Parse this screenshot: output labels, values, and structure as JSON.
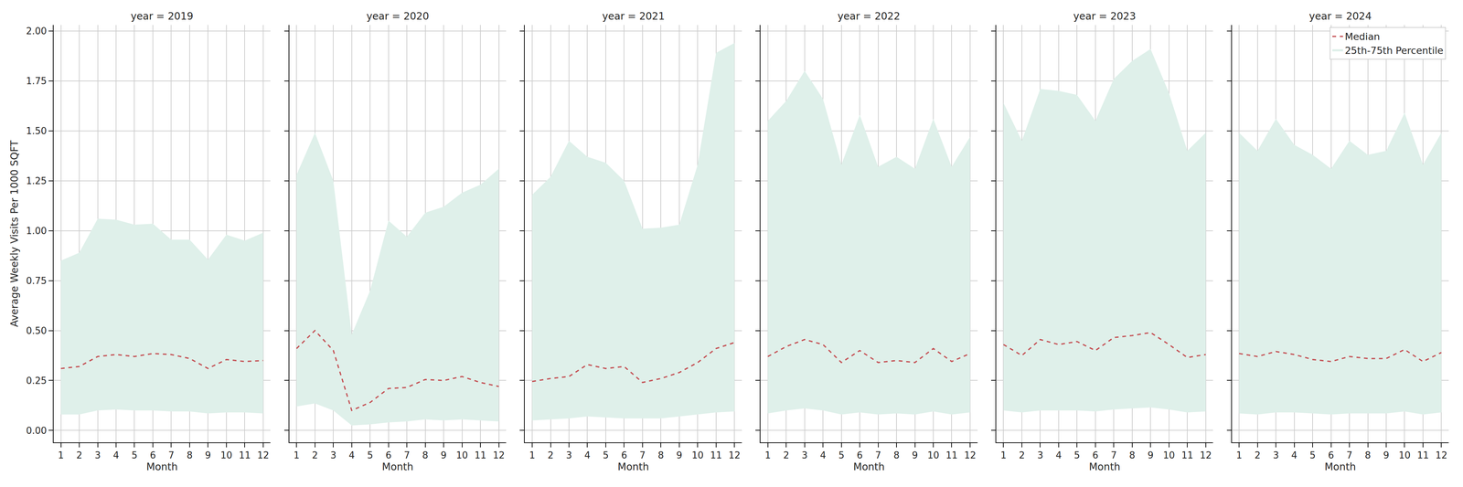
{
  "chart_data": [
    {
      "type": "line",
      "title": "year = 2019",
      "x_label": "Month",
      "y_label": "Average Weekly Visits Per 1000 SQFT",
      "x": [
        1,
        2,
        3,
        4,
        5,
        6,
        7,
        8,
        9,
        10,
        11,
        12
      ],
      "series": [
        {
          "name": "25th-75th Percentile",
          "type": "area",
          "color": "#dff0ea",
          "lower": [
            0.08,
            0.08,
            0.1,
            0.105,
            0.1,
            0.1,
            0.095,
            0.095,
            0.085,
            0.09,
            0.09,
            0.085
          ],
          "upper": [
            0.85,
            0.89,
            1.06,
            1.055,
            1.03,
            1.035,
            0.955,
            0.955,
            0.855,
            0.98,
            0.95,
            0.99
          ]
        },
        {
          "name": "Median",
          "type": "line",
          "color": "#c44e52",
          "line_style": "dashed",
          "values": [
            0.31,
            0.32,
            0.37,
            0.38,
            0.37,
            0.385,
            0.38,
            0.36,
            0.31,
            0.355,
            0.345,
            0.35
          ]
        }
      ],
      "xlim": [
        0.6,
        12.4
      ],
      "xticks": [
        1,
        2,
        3,
        4,
        5,
        6,
        7,
        8,
        9,
        10,
        11,
        12
      ],
      "ylim": [
        -0.06,
        2.03
      ],
      "yticks": [
        {
          "value": 0,
          "label": "0.00"
        },
        {
          "value": 0.25,
          "label": "0.25"
        },
        {
          "value": 0.5,
          "label": "0.50"
        },
        {
          "value": 0.75,
          "label": "0.75"
        },
        {
          "value": 1,
          "label": "1.00"
        },
        {
          "value": 1.25,
          "label": "1.25"
        },
        {
          "value": 1.5,
          "label": "1.50"
        },
        {
          "value": 1.75,
          "label": "1.75"
        },
        {
          "value": 2,
          "label": "2.00"
        }
      ],
      "grid": true
    },
    {
      "type": "line",
      "title": "year = 2020",
      "x_label": "Month",
      "x": [
        1,
        2,
        3,
        4,
        5,
        6,
        7,
        8,
        9,
        10,
        11,
        12
      ],
      "series": [
        {
          "name": "25th-75th Percentile",
          "type": "area",
          "color": "#dff0ea",
          "lower": [
            0.12,
            0.135,
            0.1,
            0.025,
            0.03,
            0.04,
            0.045,
            0.055,
            0.05,
            0.055,
            0.05,
            0.045
          ],
          "upper": [
            1.28,
            1.49,
            1.25,
            0.48,
            0.7,
            1.05,
            0.97,
            1.09,
            1.12,
            1.19,
            1.23,
            1.31
          ]
        },
        {
          "name": "Median",
          "type": "line",
          "color": "#c44e52",
          "line_style": "dashed",
          "values": [
            0.41,
            0.5,
            0.4,
            0.1,
            0.14,
            0.21,
            0.215,
            0.255,
            0.25,
            0.27,
            0.24,
            0.22
          ]
        }
      ],
      "xlim": [
        0.6,
        12.4
      ],
      "xticks": [
        1,
        2,
        3,
        4,
        5,
        6,
        7,
        8,
        9,
        10,
        11,
        12
      ],
      "ylim": [
        -0.06,
        2.03
      ],
      "yticks": [
        {
          "value": 0,
          "label": "0.00"
        },
        {
          "value": 0.25,
          "label": "0.25"
        },
        {
          "value": 0.5,
          "label": "0.50"
        },
        {
          "value": 0.75,
          "label": "0.75"
        },
        {
          "value": 1,
          "label": "1.00"
        },
        {
          "value": 1.25,
          "label": "1.25"
        },
        {
          "value": 1.5,
          "label": "1.50"
        },
        {
          "value": 1.75,
          "label": "1.75"
        },
        {
          "value": 2,
          "label": "2.00"
        }
      ],
      "grid": true,
      "tick_labels": "x"
    },
    {
      "type": "line",
      "title": "year = 2021",
      "x_label": "Month",
      "x": [
        1,
        2,
        3,
        4,
        5,
        6,
        7,
        8,
        9,
        10,
        11,
        12
      ],
      "series": [
        {
          "name": "25th-75th Percentile",
          "type": "area",
          "color": "#dff0ea",
          "lower": [
            0.05,
            0.055,
            0.06,
            0.07,
            0.065,
            0.06,
            0.06,
            0.06,
            0.07,
            0.08,
            0.09,
            0.095
          ],
          "upper": [
            1.18,
            1.27,
            1.45,
            1.37,
            1.34,
            1.25,
            1.01,
            1.015,
            1.03,
            1.33,
            1.89,
            1.94
          ]
        },
        {
          "name": "Median",
          "type": "line",
          "color": "#c44e52",
          "line_style": "dashed",
          "values": [
            0.245,
            0.26,
            0.27,
            0.33,
            0.31,
            0.32,
            0.24,
            0.26,
            0.29,
            0.34,
            0.41,
            0.44
          ]
        }
      ],
      "xlim": [
        0.6,
        12.4
      ],
      "xticks": [
        1,
        2,
        3,
        4,
        5,
        6,
        7,
        8,
        9,
        10,
        11,
        12
      ],
      "ylim": [
        -0.06,
        2.03
      ],
      "yticks": [
        {
          "value": 0,
          "label": "0.00"
        },
        {
          "value": 0.25,
          "label": "0.25"
        },
        {
          "value": 0.5,
          "label": "0.50"
        },
        {
          "value": 0.75,
          "label": "0.75"
        },
        {
          "value": 1,
          "label": "1.00"
        },
        {
          "value": 1.25,
          "label": "1.25"
        },
        {
          "value": 1.5,
          "label": "1.50"
        },
        {
          "value": 1.75,
          "label": "1.75"
        },
        {
          "value": 2,
          "label": "2.00"
        }
      ],
      "grid": true,
      "tick_labels": "x"
    },
    {
      "type": "line",
      "title": "year = 2022",
      "x_label": "Month",
      "x": [
        1,
        2,
        3,
        4,
        5,
        6,
        7,
        8,
        9,
        10,
        11,
        12
      ],
      "series": [
        {
          "name": "25th-75th Percentile",
          "type": "area",
          "color": "#dff0ea",
          "lower": [
            0.085,
            0.1,
            0.11,
            0.1,
            0.08,
            0.09,
            0.08,
            0.085,
            0.08,
            0.095,
            0.08,
            0.09
          ],
          "upper": [
            1.55,
            1.65,
            1.8,
            1.66,
            1.33,
            1.58,
            1.32,
            1.37,
            1.31,
            1.56,
            1.32,
            1.47
          ]
        },
        {
          "name": "Median",
          "type": "line",
          "color": "#c44e52",
          "line_style": "dashed",
          "values": [
            0.37,
            0.42,
            0.455,
            0.43,
            0.34,
            0.4,
            0.34,
            0.35,
            0.34,
            0.41,
            0.345,
            0.385
          ]
        }
      ],
      "xlim": [
        0.6,
        12.4
      ],
      "xticks": [
        1,
        2,
        3,
        4,
        5,
        6,
        7,
        8,
        9,
        10,
        11,
        12
      ],
      "ylim": [
        -0.06,
        2.03
      ],
      "yticks": [
        {
          "value": 0,
          "label": "0.00"
        },
        {
          "value": 0.25,
          "label": "0.25"
        },
        {
          "value": 0.5,
          "label": "0.50"
        },
        {
          "value": 0.75,
          "label": "0.75"
        },
        {
          "value": 1,
          "label": "1.00"
        },
        {
          "value": 1.25,
          "label": "1.25"
        },
        {
          "value": 1.5,
          "label": "1.50"
        },
        {
          "value": 1.75,
          "label": "1.75"
        },
        {
          "value": 2,
          "label": "2.00"
        }
      ],
      "grid": true,
      "tick_labels": "x"
    },
    {
      "type": "line",
      "title": "year = 2023",
      "x_label": "Month",
      "x": [
        1,
        2,
        3,
        4,
        5,
        6,
        7,
        8,
        9,
        10,
        11,
        12
      ],
      "series": [
        {
          "name": "25th-75th Percentile",
          "type": "area",
          "color": "#dff0ea",
          "lower": [
            0.1,
            0.09,
            0.1,
            0.1,
            0.1,
            0.095,
            0.105,
            0.11,
            0.115,
            0.105,
            0.09,
            0.095
          ],
          "upper": [
            1.64,
            1.45,
            1.71,
            1.7,
            1.68,
            1.55,
            1.76,
            1.85,
            1.91,
            1.69,
            1.4,
            1.49
          ]
        },
        {
          "name": "Median",
          "type": "line",
          "color": "#c44e52",
          "line_style": "dashed",
          "values": [
            0.43,
            0.375,
            0.455,
            0.43,
            0.445,
            0.4,
            0.465,
            0.475,
            0.49,
            0.43,
            0.365,
            0.38
          ]
        }
      ],
      "xlim": [
        0.6,
        12.4
      ],
      "xticks": [
        1,
        2,
        3,
        4,
        5,
        6,
        7,
        8,
        9,
        10,
        11,
        12
      ],
      "ylim": [
        -0.06,
        2.03
      ],
      "yticks": [
        {
          "value": 0,
          "label": "0.00"
        },
        {
          "value": 0.25,
          "label": "0.25"
        },
        {
          "value": 0.5,
          "label": "0.50"
        },
        {
          "value": 0.75,
          "label": "0.75"
        },
        {
          "value": 1,
          "label": "1.00"
        },
        {
          "value": 1.25,
          "label": "1.25"
        },
        {
          "value": 1.5,
          "label": "1.50"
        },
        {
          "value": 1.75,
          "label": "1.75"
        },
        {
          "value": 2,
          "label": "2.00"
        }
      ],
      "grid": true,
      "tick_labels": "x"
    },
    {
      "type": "line",
      "title": "year = 2024",
      "x_label": "Month",
      "x": [
        1,
        2,
        3,
        4,
        5,
        6,
        7,
        8,
        9,
        10,
        11,
        12
      ],
      "series": [
        {
          "name": "25th-75th Percentile",
          "type": "area",
          "color": "#dff0ea",
          "lower": [
            0.085,
            0.08,
            0.09,
            0.09,
            0.085,
            0.08,
            0.085,
            0.085,
            0.085,
            0.095,
            0.08,
            0.09
          ],
          "upper": [
            1.49,
            1.4,
            1.56,
            1.43,
            1.38,
            1.31,
            1.45,
            1.38,
            1.4,
            1.59,
            1.33,
            1.49
          ]
        },
        {
          "name": "Median",
          "type": "line",
          "color": "#c44e52",
          "line_style": "dashed",
          "values": [
            0.385,
            0.37,
            0.395,
            0.38,
            0.355,
            0.345,
            0.37,
            0.36,
            0.36,
            0.405,
            0.345,
            0.39
          ]
        }
      ],
      "xlim": [
        0.6,
        12.4
      ],
      "xticks": [
        1,
        2,
        3,
        4,
        5,
        6,
        7,
        8,
        9,
        10,
        11,
        12
      ],
      "ylim": [
        -0.06,
        2.03
      ],
      "yticks": [
        {
          "value": 0,
          "label": "0.00"
        },
        {
          "value": 0.25,
          "label": "0.25"
        },
        {
          "value": 0.5,
          "label": "0.50"
        },
        {
          "value": 0.75,
          "label": "0.75"
        },
        {
          "value": 1,
          "label": "1.00"
        },
        {
          "value": 1.25,
          "label": "1.25"
        },
        {
          "value": 1.5,
          "label": "1.50"
        },
        {
          "value": 1.75,
          "label": "1.75"
        },
        {
          "value": 2,
          "label": "2.00"
        }
      ],
      "grid": true,
      "tick_labels": "x",
      "legend": "upper right"
    }
  ]
}
